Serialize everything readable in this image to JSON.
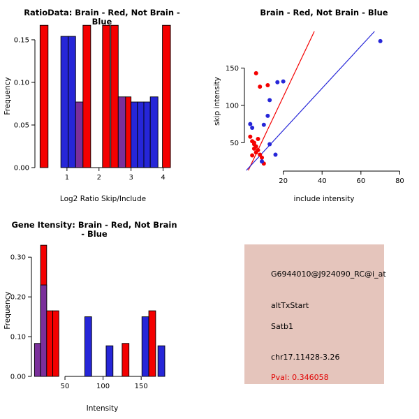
{
  "colors": {
    "red": "#F40000",
    "blue": "#2626D8",
    "purple": "#7B2F9B",
    "info_bg": "#E5C5BC",
    "pval_text": "#E10000",
    "axis": "#000000"
  },
  "legend": {
    "brain": "red",
    "not_brain": "blue",
    "overlap": "purple"
  },
  "chart_data": [
    {
      "type": "bar",
      "title": "RatioData: Brain - Red, Not Brain - Blue",
      "xlabel": "Log2 Ratio Skip/Include",
      "ylabel": "Frequency",
      "xlim": [
        0,
        4.25
      ],
      "ylim": [
        0,
        0.168
      ],
      "xticks": [
        1,
        2,
        3,
        4
      ],
      "xtick_labels": [
        "1",
        "2",
        "3",
        "4"
      ],
      "yticks": [
        0,
        0.05,
        0.1,
        0.15
      ],
      "ytick_labels": [
        "0.00",
        "0.05",
        "0.10",
        "0.15"
      ],
      "grid": false,
      "bars": [
        {
          "x0": 0.16,
          "x1": 0.41,
          "h": 0.167,
          "color": "red"
        },
        {
          "x0": 0.81,
          "x1": 1.04,
          "h": 0.154,
          "color": "blue"
        },
        {
          "x0": 1.04,
          "x1": 1.27,
          "h": 0.154,
          "color": "blue"
        },
        {
          "x0": 1.27,
          "x1": 1.5,
          "h": 0.077,
          "color": "purple"
        },
        {
          "x0": 1.5,
          "x1": 1.74,
          "h": 0.167,
          "color": "red"
        },
        {
          "x0": 2.11,
          "x1": 2.34,
          "h": 0.167,
          "color": "red"
        },
        {
          "x0": 2.37,
          "x1": 2.6,
          "h": 0.167,
          "color": "red"
        },
        {
          "x0": 2.6,
          "x1": 2.83,
          "h": 0.083,
          "color": "purple"
        },
        {
          "x0": 2.83,
          "x1": 3.0,
          "h": 0.083,
          "color": "red"
        },
        {
          "x0": 3.0,
          "x1": 3.2,
          "h": 0.077,
          "color": "blue"
        },
        {
          "x0": 3.2,
          "x1": 3.4,
          "h": 0.077,
          "color": "blue"
        },
        {
          "x0": 3.4,
          "x1": 3.6,
          "h": 0.077,
          "color": "blue"
        },
        {
          "x0": 3.6,
          "x1": 3.84,
          "h": 0.083,
          "color": "blue"
        },
        {
          "x0": 3.98,
          "x1": 4.23,
          "h": 0.167,
          "color": "red"
        }
      ]
    },
    {
      "type": "scatter",
      "title": "Brain - Red, Not Brain - Blue",
      "xlabel": "include intensity",
      "ylabel": "skip intensity",
      "xlim": [
        0,
        82
      ],
      "ylim": [
        12,
        199
      ],
      "xticks": [
        20,
        40,
        60,
        80
      ],
      "xtick_labels": [
        "20",
        "40",
        "60",
        "80"
      ],
      "yticks": [
        50,
        100,
        150
      ],
      "ytick_labels": [
        "50",
        "100",
        "150"
      ],
      "grid": false,
      "series": [
        {
          "name": "Brain",
          "color": "red",
          "points": [
            [
              6,
              143
            ],
            [
              8,
              125
            ],
            [
              12,
              127
            ],
            [
              3,
              58
            ],
            [
              4,
              52
            ],
            [
              5,
              48
            ],
            [
              6,
              45
            ],
            [
              5,
              42
            ],
            [
              7,
              40
            ],
            [
              6,
              37
            ],
            [
              8,
              34
            ],
            [
              9,
              30
            ],
            [
              4,
              33
            ],
            [
              10,
              22
            ],
            [
              7,
              55
            ],
            [
              5,
              50
            ]
          ]
        },
        {
          "name": "Not Brain",
          "color": "blue",
          "points": [
            [
              70,
              186
            ],
            [
              17,
              131
            ],
            [
              20,
              132
            ],
            [
              13,
              107
            ],
            [
              12,
              86
            ],
            [
              10,
              74
            ],
            [
              3,
              75
            ],
            [
              4,
              70
            ],
            [
              16,
              34
            ],
            [
              9,
              25
            ],
            [
              13,
              48
            ]
          ]
        }
      ],
      "lines": [
        {
          "color": "red",
          "x": [
            2,
            36
          ],
          "y": [
            13,
            199
          ]
        },
        {
          "color": "blue",
          "x": [
            1,
            67
          ],
          "y": [
            13,
            199
          ]
        }
      ]
    },
    {
      "type": "bar",
      "title": "Gene Itensity: Brain - Red, Not Brain - Blue",
      "xlabel": "Intensity",
      "ylabel": "Frequency",
      "xlim": [
        6,
        192
      ],
      "ylim": [
        0,
        0.332
      ],
      "xticks": [
        50,
        100,
        150
      ],
      "xtick_labels": [
        "50",
        "100",
        "150"
      ],
      "yticks": [
        0,
        0.1,
        0.2,
        0.3
      ],
      "ytick_labels": [
        "0.00",
        "0.10",
        "0.20",
        "0.30"
      ],
      "grid": false,
      "bars": [
        {
          "x0": 10,
          "x1": 18,
          "h": 0.083,
          "color": "purple"
        },
        {
          "x0": 18,
          "x1": 26,
          "h": 0.33,
          "color": "red"
        },
        {
          "x0": 18,
          "x1": 26,
          "h": 0.23,
          "color": "purple"
        },
        {
          "x0": 26,
          "x1": 34,
          "h": 0.165,
          "color": "red"
        },
        {
          "x0": 34,
          "x1": 42,
          "h": 0.165,
          "color": "red"
        },
        {
          "x0": 76,
          "x1": 85,
          "h": 0.15,
          "color": "blue"
        },
        {
          "x0": 104,
          "x1": 113,
          "h": 0.077,
          "color": "blue"
        },
        {
          "x0": 125,
          "x1": 134,
          "h": 0.083,
          "color": "red"
        },
        {
          "x0": 151,
          "x1": 160,
          "h": 0.15,
          "color": "blue"
        },
        {
          "x0": 160,
          "x1": 169,
          "h": 0.165,
          "color": "red"
        },
        {
          "x0": 172,
          "x1": 181,
          "h": 0.077,
          "color": "blue"
        }
      ]
    }
  ],
  "info_box": {
    "probe_id": "G6944010@J924090_RC@i_at",
    "event_type": "altTxStart",
    "gene": "Satb1",
    "location": "chr17.11428-3.26",
    "pval": "Pval: 0.346058"
  }
}
